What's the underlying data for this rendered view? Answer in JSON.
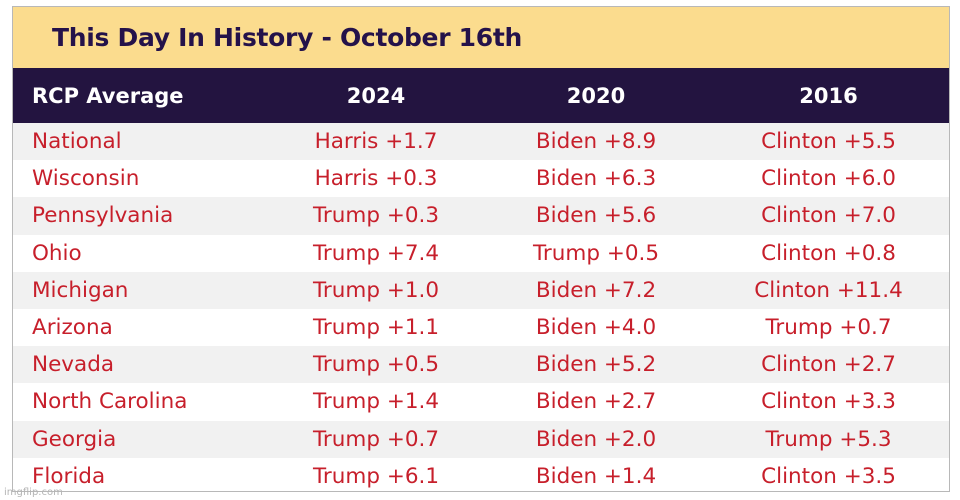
{
  "title": "This Day In History - October 16th",
  "table": {
    "headers": [
      "RCP Average",
      "2024",
      "2020",
      "2016"
    ],
    "rows": [
      [
        "National",
        "Harris +1.7",
        "Biden +8.9",
        "Clinton +5.5"
      ],
      [
        "Wisconsin",
        "Harris +0.3",
        "Biden +6.3",
        "Clinton +6.0"
      ],
      [
        "Pennsylvania",
        "Trump +0.3",
        "Biden +5.6",
        "Clinton +7.0"
      ],
      [
        "Ohio",
        "Trump +7.4",
        "Trump +0.5",
        "Clinton +0.8"
      ],
      [
        "Michigan",
        "Trump +1.0",
        "Biden +7.2",
        "Clinton +11.4"
      ],
      [
        "Arizona",
        "Trump +1.1",
        "Biden +4.0",
        "Trump +0.7"
      ],
      [
        "Nevada",
        "Trump +0.5",
        "Biden +5.2",
        "Clinton +2.7"
      ],
      [
        "North Carolina",
        "Trump +1.4",
        "Biden +2.7",
        "Clinton +3.3"
      ],
      [
        "Georgia",
        "Trump +0.7",
        "Biden +2.0",
        "Trump +5.3"
      ],
      [
        "Florida",
        "Trump +6.1",
        "Biden +1.4",
        "Clinton +3.5"
      ]
    ]
  },
  "watermark": "imgflip.com",
  "colors": {
    "title_background": "#fbdc8e",
    "title_text": "#24124a",
    "header_background": "#231440",
    "header_text": "#ffffff",
    "cell_text": "#c71f2b",
    "row_stripe": "#f1f1f1"
  }
}
